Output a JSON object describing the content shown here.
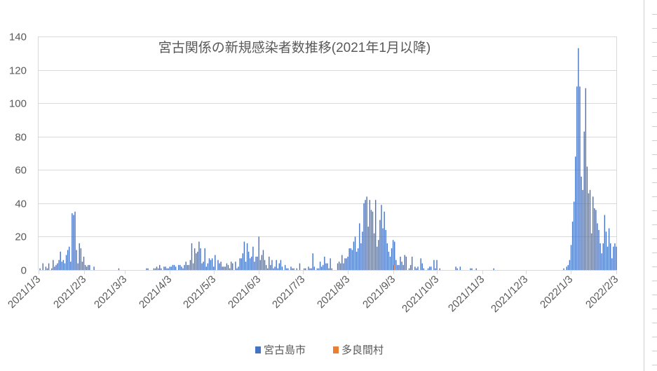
{
  "chart_data": {
    "type": "bar",
    "title": "宮古関係の新規感染者数推移(2021年1月以降)",
    "xlabel": "",
    "ylabel": "",
    "ylim": [
      0,
      140
    ],
    "y_ticks": [
      "0",
      "20",
      "40",
      "60",
      "80",
      "100",
      "120",
      "140"
    ],
    "x_range": [
      "2021/1/3",
      "2022/2/3"
    ],
    "x_ticks": [
      "2021/1/3",
      "2021/2/3",
      "2021/3/3",
      "2021/4/3",
      "2021/5/3",
      "2021/6/3",
      "2021/7/3",
      "2021/8/3",
      "2021/9/3",
      "2021/10/3",
      "2021/11/3",
      "2021/12/3",
      "2022/1/3",
      "2022/2/3"
    ],
    "grid": true,
    "legend_position": "bottom",
    "series": [
      {
        "name": "宮古島市",
        "color": "#4472C4",
        "daily_values": [
          0,
          1,
          0,
          4,
          0,
          2,
          1,
          4,
          0,
          1,
          6,
          2,
          3,
          4,
          6,
          11,
          5,
          6,
          4,
          9,
          12,
          14,
          5,
          34,
          33,
          35,
          12,
          4,
          16,
          13,
          5,
          8,
          3,
          2,
          3,
          3,
          0,
          0,
          2,
          0,
          0,
          0,
          0,
          0,
          0,
          0,
          0,
          0,
          0,
          0,
          0,
          0,
          0,
          0,
          0,
          1,
          0,
          0,
          0,
          0,
          0,
          0,
          0,
          0,
          0,
          0,
          0,
          0,
          0,
          0,
          0,
          0,
          0,
          0,
          1,
          1,
          0,
          0,
          0,
          1,
          1,
          2,
          1,
          3,
          1,
          0,
          2,
          2,
          1,
          1,
          2,
          2,
          3,
          3,
          2,
          0,
          3,
          3,
          2,
          1,
          3,
          5,
          3,
          3,
          6,
          16,
          4,
          13,
          10,
          11,
          17,
          13,
          4,
          5,
          13,
          2,
          4,
          7,
          6,
          7,
          2,
          9,
          0,
          6,
          4,
          5,
          2,
          2,
          2,
          4,
          3,
          1,
          5,
          4,
          0,
          5,
          1,
          2,
          7,
          7,
          10,
          17,
          5,
          16,
          11,
          7,
          8,
          14,
          5,
          8,
          8,
          20,
          6,
          9,
          12,
          6,
          3,
          1,
          8,
          3,
          6,
          1,
          2,
          6,
          1,
          4,
          6,
          2,
          0,
          3,
          1,
          1,
          0,
          2,
          1,
          1,
          0,
          1,
          0,
          4,
          0,
          0,
          1,
          1,
          0,
          2,
          1,
          1,
          10,
          2,
          0,
          1,
          1,
          5,
          2,
          3,
          8,
          4,
          4,
          1,
          7,
          1,
          0,
          0,
          0,
          4,
          5,
          4,
          9,
          4,
          7,
          7,
          8,
          13,
          13,
          12,
          17,
          20,
          11,
          13,
          28,
          16,
          23,
          40,
          42,
          44,
          26,
          42,
          36,
          35,
          22,
          42,
          14,
          18,
          30,
          39,
          25,
          35,
          24,
          16,
          11,
          8,
          13,
          18,
          17,
          6,
          3,
          3,
          8,
          5,
          3,
          9,
          8,
          0,
          1,
          3,
          8,
          0,
          2,
          1,
          2,
          0,
          7,
          4,
          1,
          0,
          0,
          1,
          2,
          2,
          0,
          6,
          1,
          6,
          0,
          1,
          0,
          0,
          0,
          0,
          0,
          0,
          0,
          0,
          0,
          0,
          2,
          1,
          0,
          2,
          0,
          0,
          0,
          0,
          0,
          0,
          1,
          1,
          0,
          0,
          1,
          0,
          0,
          0,
          0,
          0,
          0,
          0,
          0,
          0,
          0,
          0,
          1,
          0,
          0,
          0,
          0,
          0,
          0,
          0,
          0,
          0,
          0,
          0,
          0,
          0,
          0,
          0,
          0,
          0,
          0,
          0,
          0,
          0,
          0,
          0,
          0,
          0,
          0,
          0,
          0,
          0,
          0,
          0,
          0,
          0,
          0,
          0,
          0,
          0,
          0,
          0,
          0,
          0,
          0,
          0,
          0,
          0,
          0,
          0,
          1,
          0,
          2,
          3,
          6,
          15,
          29,
          41,
          68,
          110,
          133,
          110,
          56,
          48,
          83,
          109,
          62,
          46,
          48,
          22,
          44,
          37,
          36,
          28,
          24,
          16,
          10,
          16,
          33,
          23,
          14,
          25,
          16,
          7,
          14,
          16,
          14
        ]
      },
      {
        "name": "多良間村",
        "color": "#ED7D31",
        "points": [
          {
            "x": "2021/9/3",
            "y": 3
          }
        ]
      }
    ]
  }
}
